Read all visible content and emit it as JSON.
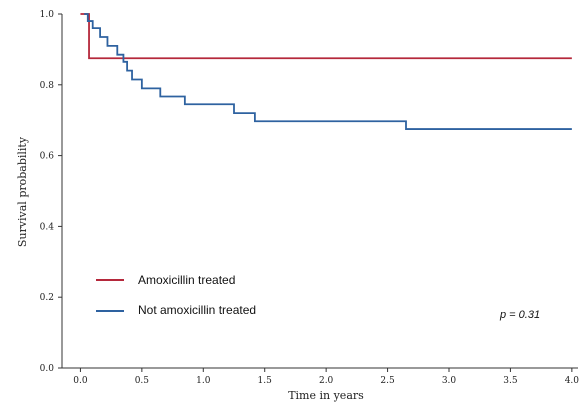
{
  "chart_data": {
    "type": "line",
    "xlabel": "Time in years",
    "ylabel": "Survival probability",
    "xlim": [
      -0.15,
      4.05
    ],
    "ylim": [
      0.0,
      1.0
    ],
    "xticks": [
      "0.0",
      "0.5",
      "1.0",
      "1.5",
      "2.0",
      "2.5",
      "3.0",
      "3.5",
      "4.0"
    ],
    "yticks": [
      "0.0",
      "0.2",
      "0.4",
      "0.6",
      "0.8",
      "1.0"
    ],
    "grid": false,
    "legend_position": "lower-left",
    "annotation": "p = 0.31",
    "series": [
      {
        "name": "Amoxicillin treated",
        "color": "#b5283b",
        "step": true,
        "x": [
          0.0,
          0.07,
          0.07,
          4.0
        ],
        "y": [
          1.0,
          1.0,
          0.875,
          0.875
        ]
      },
      {
        "name": "Not amoxicillin treated",
        "color": "#2e62a0",
        "step": true,
        "x": [
          0.03,
          0.06,
          0.1,
          0.16,
          0.22,
          0.3,
          0.35,
          0.38,
          0.42,
          0.5,
          0.65,
          0.85,
          1.25,
          1.42,
          2.65,
          4.0
        ],
        "y": [
          1.0,
          0.98,
          0.96,
          0.935,
          0.91,
          0.885,
          0.865,
          0.84,
          0.815,
          0.79,
          0.767,
          0.745,
          0.72,
          0.697,
          0.675,
          0.675
        ]
      }
    ]
  }
}
